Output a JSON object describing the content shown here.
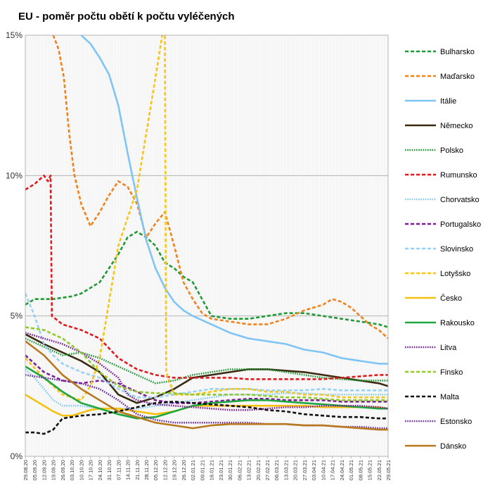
{
  "chart_data": {
    "type": "line",
    "title": "EU - poměr počtu obětí k počtu vyléčených",
    "xlabel": "",
    "ylabel": "",
    "ylim": [
      0,
      15
    ],
    "y_ticks": [
      "0%",
      "5%",
      "10%",
      "15%"
    ],
    "y_tick_values": [
      0,
      5,
      10,
      15
    ],
    "grid": true,
    "legend_position": "right",
    "x_start": "2020-08-29",
    "x_end": "2021-05-29",
    "x_tick_labels": [
      "29.08.20",
      "05.09.20",
      "12.09.20",
      "19.09.20",
      "26.09.20",
      "03.10.20",
      "10.10.20",
      "17.10.20",
      "24.10.20",
      "31.10.20",
      "07.11.20",
      "14.11.20",
      "21.11.20",
      "28.11.20",
      "05.12.20",
      "12.12.20",
      "19.12.20",
      "26.12.20",
      "02.01.21",
      "09.01.21",
      "16.01.21",
      "23.01.21",
      "30.01.21",
      "06.02.21",
      "13.02.21",
      "20.02.21",
      "27.02.21",
      "06.03.21",
      "13.03.21",
      "20.03.21",
      "27.03.21",
      "03.04.21",
      "10.04.21",
      "17.04.21",
      "24.04.21",
      "01.05.21",
      "08.05.21",
      "15.05.21",
      "22.05.21",
      "29.05.21"
    ],
    "series": [
      {
        "name": "Bulharsko",
        "color": "#1e9a35",
        "dash": "dashed",
        "x": [
          "2020-08-29",
          "2020-09-05",
          "2020-09-19",
          "2020-10-03",
          "2020-10-10",
          "2020-10-17",
          "2020-10-24",
          "2020-10-31",
          "2020-11-07",
          "2020-11-14",
          "2020-11-21",
          "2020-11-28",
          "2020-12-05",
          "2020-12-12",
          "2020-12-19",
          "2020-12-26",
          "2021-01-02",
          "2021-01-09",
          "2021-01-16",
          "2021-01-30",
          "2021-02-13",
          "2021-02-27",
          "2021-03-13",
          "2021-03-27",
          "2021-04-10",
          "2021-04-24",
          "2021-05-08",
          "2021-05-22",
          "2021-05-29"
        ],
        "values": [
          5.4,
          5.6,
          5.6,
          5.7,
          5.8,
          6.0,
          6.2,
          6.7,
          7.2,
          7.8,
          8.0,
          7.8,
          7.5,
          6.9,
          6.7,
          6.4,
          6.2,
          5.6,
          5.0,
          4.9,
          4.9,
          5.0,
          5.1,
          5.1,
          5.0,
          4.9,
          4.8,
          4.7,
          4.6
        ]
      },
      {
        "name": "Maďarsko",
        "color": "#f0821e",
        "dash": "dashed",
        "x": [
          "2020-09-19",
          "2020-09-23",
          "2020-09-27",
          "2020-10-01",
          "2020-10-05",
          "2020-10-10",
          "2020-10-17",
          "2020-10-24",
          "2020-10-31",
          "2020-11-07",
          "2020-11-14",
          "2020-11-21",
          "2020-11-28",
          "2020-12-05",
          "2020-12-12",
          "2020-12-19",
          "2020-12-26",
          "2021-01-02",
          "2021-01-09",
          "2021-01-16",
          "2021-01-30",
          "2021-02-13",
          "2021-02-27",
          "2021-03-13",
          "2021-03-27",
          "2021-04-10",
          "2021-04-17",
          "2021-04-24",
          "2021-05-01",
          "2021-05-08",
          "2021-05-15",
          "2021-05-22",
          "2021-05-29"
        ],
        "values": [
          15.0,
          14.5,
          13.5,
          11.5,
          10.0,
          9.0,
          8.2,
          8.7,
          9.3,
          9.8,
          9.6,
          9.0,
          7.8,
          8.3,
          8.7,
          7.5,
          6.2,
          5.6,
          5.1,
          4.9,
          4.8,
          4.7,
          4.7,
          4.9,
          5.2,
          5.4,
          5.6,
          5.5,
          5.3,
          5.0,
          4.7,
          4.5,
          4.2
        ]
      },
      {
        "name": "Itálie",
        "color": "#7ec5f5",
        "dash": "solid",
        "x": [
          "2020-10-10",
          "2020-10-17",
          "2020-10-24",
          "2020-10-31",
          "2020-11-07",
          "2020-11-14",
          "2020-11-21",
          "2020-11-28",
          "2020-12-05",
          "2020-12-12",
          "2020-12-19",
          "2020-12-26",
          "2021-01-02",
          "2021-01-16",
          "2021-01-30",
          "2021-02-13",
          "2021-02-27",
          "2021-03-13",
          "2021-03-27",
          "2021-04-10",
          "2021-04-24",
          "2021-05-08",
          "2021-05-22",
          "2021-05-29"
        ],
        "values": [
          15.0,
          14.7,
          14.2,
          13.6,
          12.5,
          10.8,
          9.2,
          7.7,
          6.7,
          6.0,
          5.5,
          5.2,
          5.0,
          4.7,
          4.4,
          4.2,
          4.1,
          4.0,
          3.8,
          3.7,
          3.5,
          3.4,
          3.3,
          3.3
        ]
      },
      {
        "name": "Německo",
        "color": "#3a2a10",
        "dash": "solid",
        "x": [
          "2020-08-29",
          "2020-09-12",
          "2020-09-26",
          "2020-10-10",
          "2020-10-24",
          "2020-11-07",
          "2020-11-21",
          "2020-12-05",
          "2020-12-19",
          "2021-01-02",
          "2021-01-16",
          "2021-01-30",
          "2021-02-13",
          "2021-02-27",
          "2021-03-13",
          "2021-03-27",
          "2021-04-10",
          "2021-04-24",
          "2021-05-08",
          "2021-05-22",
          "2021-05-29"
        ],
        "values": [
          4.35,
          4.0,
          3.7,
          3.4,
          3.0,
          2.2,
          1.9,
          2.1,
          2.4,
          2.8,
          2.9,
          3.0,
          3.1,
          3.1,
          3.05,
          3.0,
          2.9,
          2.8,
          2.7,
          2.6,
          2.5
        ]
      },
      {
        "name": "Polsko",
        "color": "#1e9a35",
        "dash": "dotted",
        "x": [
          "2020-08-29",
          "2020-09-12",
          "2020-09-26",
          "2020-10-10",
          "2020-10-24",
          "2020-11-07",
          "2020-11-21",
          "2020-12-05",
          "2020-12-19",
          "2021-01-02",
          "2021-01-16",
          "2021-01-30",
          "2021-02-13",
          "2021-02-27",
          "2021-03-13",
          "2021-03-27",
          "2021-04-10",
          "2021-04-24",
          "2021-05-08",
          "2021-05-22",
          "2021-05-29"
        ],
        "values": [
          4.2,
          3.9,
          3.6,
          3.7,
          3.5,
          3.2,
          2.9,
          2.6,
          2.7,
          2.9,
          3.0,
          3.1,
          3.1,
          3.1,
          3.0,
          2.9,
          2.8,
          2.75,
          2.7,
          2.7,
          2.7
        ]
      },
      {
        "name": "Rumunsko",
        "color": "#e0191c",
        "dash": "dashed",
        "x": [
          "2020-08-29",
          "2020-09-05",
          "2020-09-12",
          "2020-09-15",
          "2020-09-17",
          "2020-09-18",
          "2020-09-26",
          "2020-10-10",
          "2020-10-24",
          "2020-11-07",
          "2020-11-21",
          "2020-12-05",
          "2020-12-19",
          "2021-01-02",
          "2021-01-16",
          "2021-01-30",
          "2021-02-13",
          "2021-02-27",
          "2021-03-13",
          "2021-03-27",
          "2021-04-10",
          "2021-04-24",
          "2021-05-08",
          "2021-05-22",
          "2021-05-29"
        ],
        "values": [
          9.5,
          9.7,
          10.0,
          9.8,
          10.0,
          5.0,
          4.7,
          4.5,
          4.2,
          3.5,
          3.1,
          2.9,
          2.8,
          2.8,
          2.8,
          2.8,
          2.75,
          2.75,
          2.75,
          2.75,
          2.75,
          2.8,
          2.85,
          2.9,
          2.9
        ]
      },
      {
        "name": "Chorvatsko",
        "color": "#88ccf0",
        "dash": "dotted",
        "x": [
          "2020-08-29",
          "2020-09-05",
          "2020-09-12",
          "2020-09-19",
          "2020-09-26",
          "2020-10-10",
          "2020-10-24",
          "2020-11-07",
          "2020-11-21",
          "2020-12-05",
          "2020-12-19",
          "2021-01-02",
          "2021-01-16",
          "2021-01-30",
          "2021-02-13",
          "2021-02-27",
          "2021-03-13",
          "2021-03-27",
          "2021-04-10",
          "2021-04-24",
          "2021-05-08",
          "2021-05-22",
          "2021-05-29"
        ],
        "values": [
          3.1,
          2.8,
          2.4,
          2.0,
          1.8,
          1.8,
          1.7,
          1.7,
          1.7,
          1.8,
          1.9,
          2.0,
          2.1,
          2.2,
          2.2,
          2.2,
          2.25,
          2.25,
          2.2,
          2.2,
          2.2,
          2.2,
          2.2
        ]
      },
      {
        "name": "Portugalsko",
        "color": "#7a2090",
        "dash": "dashed",
        "x": [
          "2020-08-29",
          "2020-09-12",
          "2020-09-26",
          "2020-10-10",
          "2020-10-24",
          "2020-11-07",
          "2020-11-21",
          "2020-12-05",
          "2020-12-19",
          "2021-01-02",
          "2021-01-16",
          "2021-01-30",
          "2021-02-13",
          "2021-02-27",
          "2021-03-13",
          "2021-03-27",
          "2021-04-10",
          "2021-04-24",
          "2021-05-08",
          "2021-05-22",
          "2021-05-29"
        ],
        "values": [
          3.6,
          3.0,
          2.7,
          2.6,
          2.7,
          2.6,
          2.3,
          2.0,
          1.9,
          1.9,
          1.95,
          2.0,
          2.05,
          2.05,
          2.0,
          2.0,
          2.0,
          1.95,
          1.95,
          1.95,
          1.95
        ]
      },
      {
        "name": "Slovinsko",
        "color": "#9ad0f2",
        "dash": "dashed",
        "x": [
          "2020-08-29",
          "2020-09-05",
          "2020-09-12",
          "2020-09-19",
          "2020-09-26",
          "2020-10-10",
          "2020-10-24",
          "2020-11-07",
          "2020-11-21",
          "2020-12-05",
          "2020-12-19",
          "2021-01-02",
          "2021-01-16",
          "2021-01-30",
          "2021-02-13",
          "2021-02-27",
          "2021-03-13",
          "2021-03-27",
          "2021-04-10",
          "2021-04-24",
          "2021-05-08",
          "2021-05-22",
          "2021-05-29"
        ],
        "values": [
          5.8,
          5.0,
          4.0,
          3.6,
          3.3,
          3.0,
          2.8,
          2.4,
          2.1,
          2.1,
          2.2,
          2.3,
          2.4,
          2.4,
          2.4,
          2.35,
          2.35,
          2.35,
          2.4,
          2.35,
          2.35,
          2.35,
          2.35
        ]
      },
      {
        "name": "Lotyšsko",
        "color": "#f5c518",
        "dash": "dashed",
        "x": [
          "2020-08-29",
          "2020-09-12",
          "2020-09-26",
          "2020-10-10",
          "2020-10-17",
          "2020-10-24",
          "2020-10-31",
          "2020-11-07",
          "2020-11-14",
          "2020-11-21",
          "2020-11-28",
          "2020-12-05",
          "2020-12-10",
          "2020-12-12",
          "2020-12-13",
          "2020-12-19",
          "2021-01-02",
          "2021-01-16",
          "2021-01-30",
          "2021-02-13",
          "2021-02-27",
          "2021-03-13",
          "2021-03-27",
          "2021-04-10",
          "2021-04-24",
          "2021-05-08",
          "2021-05-22",
          "2021-05-29"
        ],
        "values": [
          3.5,
          2.8,
          2.2,
          2.0,
          2.5,
          3.5,
          5.5,
          7.5,
          8.5,
          9.5,
          11.5,
          13.5,
          15.0,
          15.0,
          3.0,
          2.2,
          2.2,
          2.3,
          2.4,
          2.4,
          2.3,
          2.3,
          2.2,
          2.2,
          2.1,
          2.1,
          2.1,
          2.1
        ]
      },
      {
        "name": "Česko",
        "color": "#f5c010",
        "dash": "solid",
        "x": [
          "2020-08-29",
          "2020-09-05",
          "2020-09-12",
          "2020-09-19",
          "2020-09-26",
          "2020-10-03",
          "2020-10-10",
          "2020-10-17",
          "2020-10-24",
          "2020-11-07",
          "2020-11-21",
          "2020-12-05",
          "2020-12-19",
          "2021-01-02",
          "2021-01-16",
          "2021-01-30",
          "2021-02-13",
          "2021-02-27",
          "2021-03-13",
          "2021-03-27",
          "2021-04-10",
          "2021-04-24",
          "2021-05-08",
          "2021-05-22",
          "2021-05-29"
        ],
        "values": [
          2.2,
          2.0,
          1.8,
          1.6,
          1.45,
          1.45,
          1.55,
          1.65,
          1.7,
          1.7,
          1.6,
          1.5,
          1.6,
          1.8,
          1.8,
          1.8,
          1.8,
          1.8,
          1.8,
          1.8,
          1.75,
          1.75,
          1.75,
          1.75,
          1.7
        ]
      },
      {
        "name": "Rakousko",
        "color": "#1ea640",
        "dash": "solid",
        "x": [
          "2020-08-29",
          "2020-09-12",
          "2020-09-26",
          "2020-10-10",
          "2020-10-24",
          "2020-11-07",
          "2020-11-21",
          "2020-12-05",
          "2020-12-19",
          "2021-01-02",
          "2021-01-16",
          "2021-01-30",
          "2021-02-13",
          "2021-02-27",
          "2021-03-13",
          "2021-03-27",
          "2021-04-10",
          "2021-04-24",
          "2021-05-08",
          "2021-05-22",
          "2021-05-29"
        ],
        "values": [
          3.2,
          2.8,
          2.3,
          1.9,
          1.7,
          1.5,
          1.35,
          1.4,
          1.6,
          1.8,
          1.9,
          1.95,
          2.0,
          2.0,
          1.95,
          1.9,
          1.85,
          1.8,
          1.75,
          1.7,
          1.7
        ]
      },
      {
        "name": "Litva",
        "color": "#7a2090",
        "dash": "dotted",
        "x": [
          "2020-08-29",
          "2020-09-12",
          "2020-09-26",
          "2020-10-10",
          "2020-10-24",
          "2020-11-07",
          "2020-11-14",
          "2020-11-21",
          "2020-12-05",
          "2020-12-19",
          "2021-01-02",
          "2021-01-16",
          "2021-01-30",
          "2021-02-13",
          "2021-02-27",
          "2021-03-13",
          "2021-03-27",
          "2021-04-10",
          "2021-04-24",
          "2021-05-08",
          "2021-05-22",
          "2021-05-29"
        ],
        "values": [
          4.4,
          4.2,
          4.0,
          3.7,
          3.3,
          2.8,
          2.2,
          2.0,
          1.85,
          1.8,
          1.75,
          1.7,
          1.65,
          1.65,
          1.7,
          1.75,
          1.75,
          1.8,
          1.8,
          1.8,
          1.75,
          1.7
        ]
      },
      {
        "name": "Finsko",
        "color": "#90c830",
        "dash": "dashed",
        "x": [
          "2020-08-29",
          "2020-09-12",
          "2020-09-26",
          "2020-10-10",
          "2020-10-24",
          "2020-11-07",
          "2020-11-21",
          "2020-12-05",
          "2020-12-19",
          "2021-01-02",
          "2021-01-16",
          "2021-01-30",
          "2021-02-13",
          "2021-02-27",
          "2021-03-13",
          "2021-03-27",
          "2021-04-10",
          "2021-04-24",
          "2021-05-08",
          "2021-05-22",
          "2021-05-29"
        ],
        "values": [
          4.6,
          4.5,
          4.2,
          3.7,
          3.0,
          2.5,
          2.3,
          2.25,
          2.25,
          2.2,
          2.2,
          2.2,
          2.2,
          2.15,
          2.1,
          2.1,
          2.05,
          2.0,
          2.0,
          2.0,
          2.0
        ]
      },
      {
        "name": "Malta",
        "color": "#111111",
        "dash": "dashed",
        "x": [
          "2020-08-29",
          "2020-09-05",
          "2020-09-12",
          "2020-09-19",
          "2020-09-26",
          "2020-10-10",
          "2020-10-24",
          "2020-11-07",
          "2020-11-21",
          "2020-12-05",
          "2020-12-19",
          "2021-01-02",
          "2021-01-16",
          "2021-01-30",
          "2021-02-13",
          "2021-02-27",
          "2021-03-13",
          "2021-03-27",
          "2021-04-10",
          "2021-04-24",
          "2021-05-08",
          "2021-05-22",
          "2021-05-29"
        ],
        "values": [
          0.85,
          0.85,
          0.8,
          0.95,
          1.35,
          1.45,
          1.5,
          1.6,
          1.75,
          1.9,
          1.95,
          1.9,
          1.85,
          1.8,
          1.75,
          1.65,
          1.6,
          1.5,
          1.45,
          1.4,
          1.4,
          1.35,
          1.35
        ]
      },
      {
        "name": "Estonsko",
        "color": "#6a2aa0",
        "dash": "dotted",
        "x": [
          "2020-08-29",
          "2020-09-12",
          "2020-09-26",
          "2020-10-10",
          "2020-10-24",
          "2020-11-07",
          "2020-11-21",
          "2020-12-05",
          "2020-12-19",
          "2021-01-02",
          "2021-01-16",
          "2021-01-30",
          "2021-02-13",
          "2021-02-27",
          "2021-03-13",
          "2021-03-27",
          "2021-04-10",
          "2021-04-24",
          "2021-05-08",
          "2021-05-22",
          "2021-05-29"
        ],
        "values": [
          2.9,
          2.8,
          2.7,
          2.6,
          2.4,
          2.0,
          1.5,
          1.3,
          1.2,
          1.2,
          1.2,
          1.2,
          1.2,
          1.15,
          1.15,
          1.1,
          1.1,
          1.05,
          1.05,
          1.0,
          1.0
        ]
      },
      {
        "name": "Dánsko",
        "color": "#b8781e",
        "dash": "solid",
        "x": [
          "2020-08-29",
          "2020-09-12",
          "2020-09-26",
          "2020-10-10",
          "2020-10-24",
          "2020-11-07",
          "2020-11-21",
          "2020-12-05",
          "2020-12-19",
          "2021-01-02",
          "2021-01-16",
          "2021-01-30",
          "2021-02-13",
          "2021-02-27",
          "2021-03-13",
          "2021-03-27",
          "2021-04-10",
          "2021-04-24",
          "2021-05-08",
          "2021-05-22",
          "2021-05-29"
        ],
        "values": [
          4.1,
          3.6,
          2.9,
          2.4,
          2.0,
          1.6,
          1.4,
          1.2,
          1.1,
          1.0,
          1.1,
          1.15,
          1.15,
          1.15,
          1.15,
          1.1,
          1.1,
          1.05,
          1.0,
          0.95,
          0.95
        ]
      }
    ]
  }
}
